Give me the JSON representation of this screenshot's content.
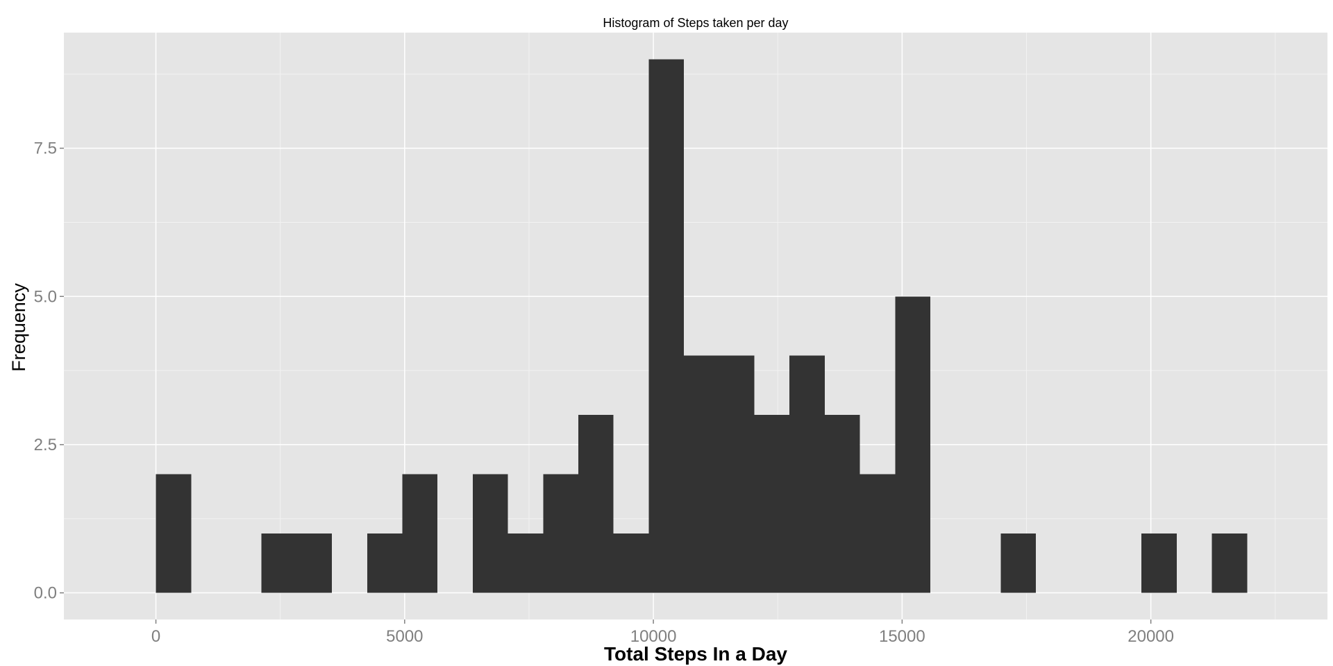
{
  "chart_data": {
    "type": "bar",
    "title": "Histogram of Steps taken per day",
    "xlabel": "Total Steps In a Day",
    "ylabel": "Frequency",
    "bin_width": 707.6,
    "bins": [
      {
        "start": 0,
        "end": 707.6,
        "count": 2
      },
      {
        "start": 707.6,
        "end": 1415.2,
        "count": 0
      },
      {
        "start": 1415.2,
        "end": 2122.8,
        "count": 0
      },
      {
        "start": 2122.8,
        "end": 2830.4,
        "count": 1
      },
      {
        "start": 2830.4,
        "end": 3538.0,
        "count": 1
      },
      {
        "start": 3538.0,
        "end": 4245.6,
        "count": 0
      },
      {
        "start": 4245.6,
        "end": 4953.2,
        "count": 1
      },
      {
        "start": 4953.2,
        "end": 5660.8,
        "count": 2
      },
      {
        "start": 5660.8,
        "end": 6368.4,
        "count": 0
      },
      {
        "start": 6368.4,
        "end": 7076.0,
        "count": 2
      },
      {
        "start": 7076.0,
        "end": 7783.6,
        "count": 1
      },
      {
        "start": 7783.6,
        "end": 8491.2,
        "count": 2
      },
      {
        "start": 8491.2,
        "end": 9198.8,
        "count": 3
      },
      {
        "start": 9198.8,
        "end": 9906.4,
        "count": 1
      },
      {
        "start": 9906.4,
        "end": 10614.0,
        "count": 9
      },
      {
        "start": 10614.0,
        "end": 11321.6,
        "count": 4
      },
      {
        "start": 11321.6,
        "end": 12029.2,
        "count": 4
      },
      {
        "start": 12029.2,
        "end": 12736.8,
        "count": 3
      },
      {
        "start": 12736.8,
        "end": 13444.4,
        "count": 4
      },
      {
        "start": 13444.4,
        "end": 14152.0,
        "count": 3
      },
      {
        "start": 14152.0,
        "end": 14859.6,
        "count": 2
      },
      {
        "start": 14859.6,
        "end": 15567.2,
        "count": 5
      },
      {
        "start": 15567.2,
        "end": 16274.8,
        "count": 0
      },
      {
        "start": 16274.8,
        "end": 16982.4,
        "count": 0
      },
      {
        "start": 16982.4,
        "end": 17690.0,
        "count": 1
      },
      {
        "start": 17690.0,
        "end": 18397.6,
        "count": 0
      },
      {
        "start": 18397.6,
        "end": 19105.2,
        "count": 0
      },
      {
        "start": 19105.2,
        "end": 19812.8,
        "count": 0
      },
      {
        "start": 19812.8,
        "end": 20520.4,
        "count": 1
      },
      {
        "start": 20520.4,
        "end": 21228.0,
        "count": 0
      },
      {
        "start": 21228.0,
        "end": 21935.6,
        "count": 1
      }
    ],
    "xlim": [
      -1850,
      23550
    ],
    "ylim": [
      -0.45,
      9.45
    ],
    "x_ticks": [
      0,
      5000,
      10000,
      15000,
      20000
    ],
    "x_tick_labels": [
      "0",
      "5000",
      "10000",
      "15000",
      "20000"
    ],
    "y_ticks": [
      0,
      2.5,
      5,
      7.5
    ],
    "y_tick_labels": [
      "0.0",
      "2.5",
      "5.0",
      "7.5"
    ],
    "grid": true,
    "legend": "none",
    "colors": {
      "bar_fill": "#333333",
      "panel_bg": "#e5e5e5",
      "grid_major": "#ffffff",
      "grid_minor": "#f2f2f2",
      "tick_label": "#7f7f7f",
      "axis_title": "#000000"
    }
  }
}
